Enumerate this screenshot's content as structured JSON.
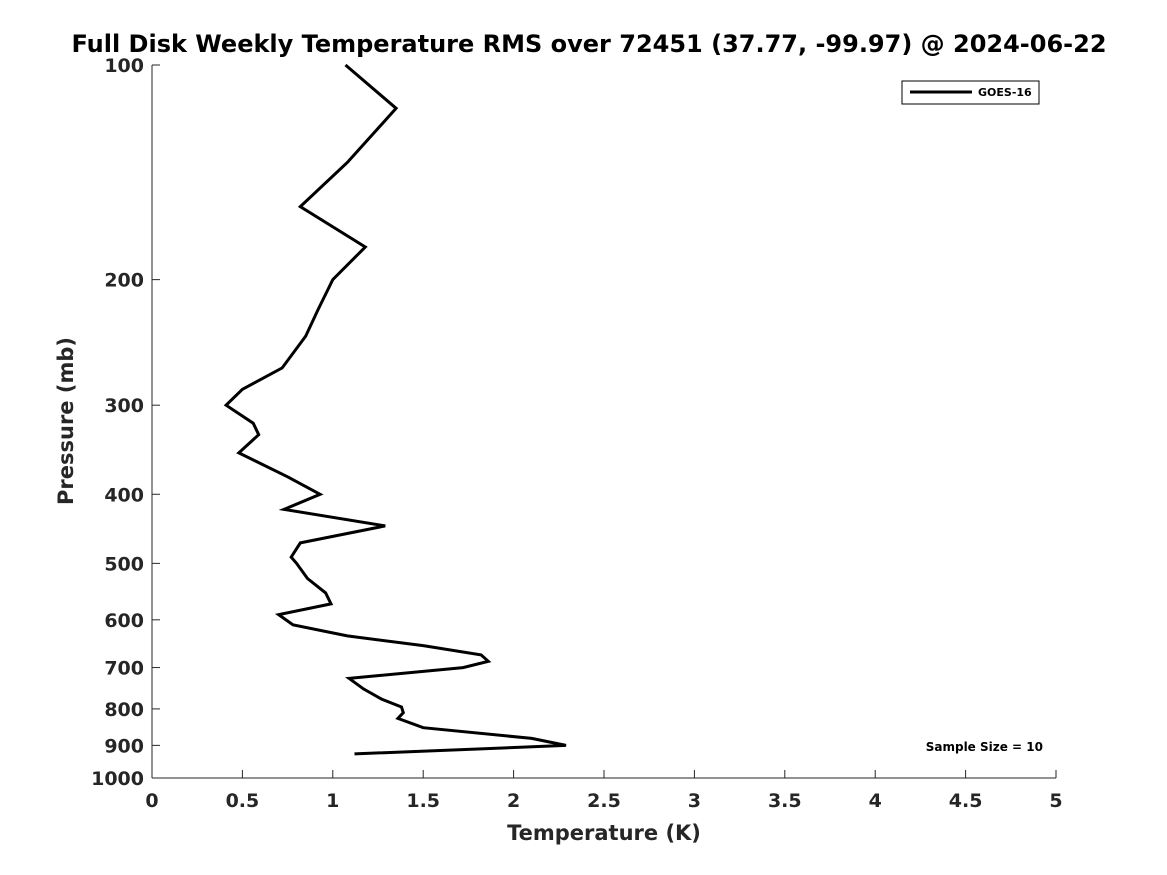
{
  "chart_data": {
    "type": "line",
    "title": "Full Disk Weekly Temperature RMS over 72451 (37.77, -99.97) @ 2024-06-22",
    "xlabel": "Temperature (K)",
    "ylabel": "Pressure (mb)",
    "xlim": [
      0,
      5
    ],
    "ylim": [
      1000,
      100
    ],
    "y_scale": "log",
    "x_ticks": [
      0,
      0.5,
      1,
      1.5,
      2,
      2.5,
      3,
      3.5,
      4,
      4.5,
      5
    ],
    "x_tick_labels": [
      "0",
      "0.5",
      "1",
      "1.5",
      "2",
      "2.5",
      "3",
      "3.5",
      "4",
      "4.5",
      "5"
    ],
    "y_ticks": [
      100,
      200,
      300,
      400,
      500,
      600,
      700,
      800,
      900,
      1000
    ],
    "y_tick_labels": [
      "100",
      "200",
      "300",
      "400",
      "500",
      "600",
      "700",
      "800",
      "900",
      "1000"
    ],
    "grid": false,
    "legend_position": "top-right",
    "series": [
      {
        "name": "GOES-16",
        "color": "#000000",
        "points": [
          [
            1.07,
            100
          ],
          [
            1.35,
            115
          ],
          [
            1.08,
            137
          ],
          [
            0.82,
            158
          ],
          [
            1.18,
            180
          ],
          [
            1.0,
            200
          ],
          [
            0.92,
            220
          ],
          [
            0.85,
            240
          ],
          [
            0.72,
            266
          ],
          [
            0.5,
            285
          ],
          [
            0.41,
            300
          ],
          [
            0.56,
            318
          ],
          [
            0.59,
            330
          ],
          [
            0.48,
            350
          ],
          [
            0.75,
            378
          ],
          [
            0.93,
            400
          ],
          [
            0.73,
            420
          ],
          [
            1.29,
            443
          ],
          [
            0.82,
            468
          ],
          [
            0.77,
            490
          ],
          [
            0.8,
            500
          ],
          [
            0.86,
            525
          ],
          [
            0.96,
            550
          ],
          [
            0.99,
            570
          ],
          [
            0.7,
            590
          ],
          [
            0.78,
            610
          ],
          [
            1.08,
            632
          ],
          [
            1.5,
            652
          ],
          [
            1.82,
            672
          ],
          [
            1.86,
            686
          ],
          [
            1.72,
            700
          ],
          [
            1.09,
            725
          ],
          [
            1.17,
            750
          ],
          [
            1.27,
            775
          ],
          [
            1.38,
            795
          ],
          [
            1.39,
            810
          ],
          [
            1.36,
            825
          ],
          [
            1.5,
            850
          ],
          [
            2.1,
            880
          ],
          [
            2.29,
            900
          ],
          [
            1.12,
            925
          ]
        ]
      }
    ],
    "annotations": [
      "Sample Size = 10"
    ]
  }
}
